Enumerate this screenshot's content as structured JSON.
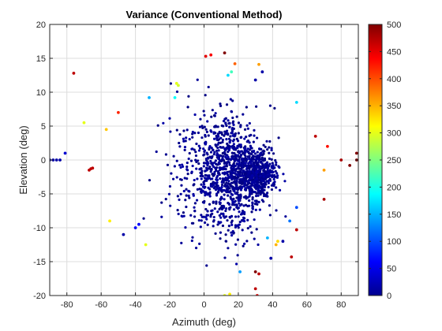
{
  "chart_data": {
    "type": "scatter",
    "title": "Variance (Conventional Method)",
    "xlabel": "Azimuth (deg)",
    "ylabel": "Elevation (deg)",
    "xlim": [
      -90,
      90
    ],
    "ylim": [
      -20,
      20
    ],
    "xticks": [
      -80,
      -60,
      -40,
      -20,
      0,
      20,
      40,
      60,
      80
    ],
    "yticks": [
      -20,
      -15,
      -10,
      -5,
      0,
      5,
      10,
      15,
      20
    ],
    "grid": true,
    "colorbar": {
      "colormap": "jet",
      "range": [
        0,
        500
      ],
      "ticks": [
        0,
        50,
        100,
        150,
        200,
        250,
        300,
        350,
        400,
        450,
        500
      ]
    },
    "approximate_low_variance_point_count": 1500,
    "low_variance_cluster": {
      "value_range": [
        0,
        20
      ],
      "azimuth_range": [
        -60,
        60
      ],
      "elevation_range": [
        -20,
        12
      ],
      "densest_region": {
        "azimuth": [
          10,
          50
        ],
        "elevation": [
          -6,
          2
        ]
      }
    },
    "points": [
      {
        "x": -90,
        "y": 0,
        "v": 20
      },
      {
        "x": -88,
        "y": 0,
        "v": 20
      },
      {
        "x": -86,
        "y": 0,
        "v": 20
      },
      {
        "x": -84,
        "y": 0,
        "v": 20
      },
      {
        "x": -81,
        "y": 1,
        "v": 40
      },
      {
        "x": -76,
        "y": 12.8,
        "v": 470
      },
      {
        "x": -70,
        "y": 5.5,
        "v": 300
      },
      {
        "x": -67,
        "y": -1.5,
        "v": 470
      },
      {
        "x": -66,
        "y": -1.3,
        "v": 470
      },
      {
        "x": -65,
        "y": -1.2,
        "v": 470
      },
      {
        "x": -57,
        "y": 4.5,
        "v": 340
      },
      {
        "x": -55,
        "y": -9,
        "v": 320
      },
      {
        "x": -50,
        "y": 7,
        "v": 420
      },
      {
        "x": -47,
        "y": -11,
        "v": 20
      },
      {
        "x": -40,
        "y": -10,
        "v": 60
      },
      {
        "x": -38,
        "y": -9.5,
        "v": 60
      },
      {
        "x": -34,
        "y": -12.5,
        "v": 300
      },
      {
        "x": -32,
        "y": 9.2,
        "v": 150
      },
      {
        "x": -16,
        "y": 11.3,
        "v": 300
      },
      {
        "x": -15,
        "y": 11,
        "v": 290
      },
      {
        "x": -17,
        "y": 9.2,
        "v": 190
      },
      {
        "x": 1,
        "y": 15.3,
        "v": 450
      },
      {
        "x": 4,
        "y": 15.5,
        "v": 440
      },
      {
        "x": 12,
        "y": 15.8,
        "v": 500
      },
      {
        "x": 14,
        "y": 12.5,
        "v": 170
      },
      {
        "x": 16,
        "y": 13,
        "v": 220
      },
      {
        "x": 18,
        "y": 14.2,
        "v": 390
      },
      {
        "x": 32,
        "y": 14.1,
        "v": 360
      },
      {
        "x": 30,
        "y": 11.8,
        "v": 20
      },
      {
        "x": 34,
        "y": 13,
        "v": 20
      },
      {
        "x": 54,
        "y": 8.5,
        "v": 170
      },
      {
        "x": 65,
        "y": 3.5,
        "v": 470
      },
      {
        "x": 70,
        "y": -1.5,
        "v": 360
      },
      {
        "x": 72,
        "y": 2,
        "v": 430
      },
      {
        "x": 70,
        "y": -5.8,
        "v": 480
      },
      {
        "x": 80,
        "y": 0,
        "v": 480
      },
      {
        "x": 85,
        "y": -0.8,
        "v": 500
      },
      {
        "x": 89,
        "y": 1,
        "v": 500
      },
      {
        "x": 89,
        "y": 0,
        "v": 500
      },
      {
        "x": 54,
        "y": -7,
        "v": 100
      },
      {
        "x": 50,
        "y": -9,
        "v": 120
      },
      {
        "x": 42,
        "y": -12.5,
        "v": 350
      },
      {
        "x": 43,
        "y": -12,
        "v": 330
      },
      {
        "x": 46,
        "y": -12,
        "v": 20
      },
      {
        "x": 37,
        "y": -11.5,
        "v": 150
      },
      {
        "x": 51,
        "y": -14.3,
        "v": 470
      },
      {
        "x": 54,
        "y": -10.3,
        "v": 470
      },
      {
        "x": 39,
        "y": -14.5,
        "v": 20
      },
      {
        "x": 21,
        "y": -16.5,
        "v": 140
      },
      {
        "x": 30,
        "y": -16.5,
        "v": 500
      },
      {
        "x": 32,
        "y": -16.8,
        "v": 470
      },
      {
        "x": 15,
        "y": -19.8,
        "v": 320
      },
      {
        "x": 30,
        "y": -19,
        "v": 470
      },
      {
        "x": 31,
        "y": -20,
        "v": 450
      },
      {
        "x": 12,
        "y": -20,
        "v": 300
      }
    ]
  }
}
